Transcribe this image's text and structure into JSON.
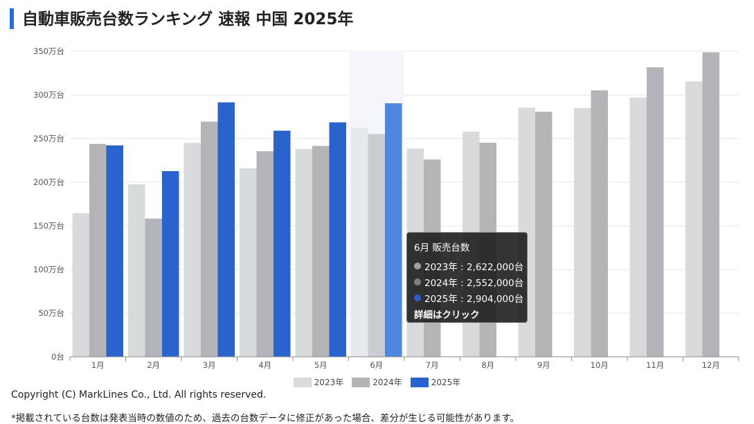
{
  "page": {
    "title": "自動車販売台数ランキング 速報 中国 2025年",
    "copyright": "Copyright (C) MarkLines Co., Ltd. All rights reserved.",
    "note": "*掲載されている台数は発表当時の数値のため、過去の台数データに修正があった場合、差分が生じる可能性があります。"
  },
  "tooltip": {
    "title": "6月 販売台数",
    "rows": [
      {
        "text": "2023年 : 2,622,000台",
        "color": "#a0a0a0"
      },
      {
        "text": "2024年 : 2,552,000台",
        "color": "#808080"
      },
      {
        "text": "2025年 : 2,904,000台",
        "color": "#2b5fc7"
      }
    ],
    "link": "詳細はクリック"
  },
  "chart_data": {
    "type": "bar",
    "categories": [
      "1月",
      "2月",
      "3月",
      "4月",
      "5月",
      "6月",
      "7月",
      "8月",
      "9月",
      "10月",
      "11月",
      "12月"
    ],
    "y_tick_labels": [
      "0台",
      "50万台",
      "100万台",
      "150万台",
      "200万台",
      "250万台",
      "300万台",
      "350万台"
    ],
    "ylim": [
      0,
      3500000
    ],
    "grid": true,
    "highlighted_category": "6月",
    "legend_position": "bottom",
    "series": [
      {
        "name": "2023年",
        "color": "#d9dadc",
        "highlight_color": "#e6e8ec",
        "values": [
          1645000,
          1976000,
          2450000,
          2158000,
          2380000,
          2622000,
          2386000,
          2580000,
          2855000,
          2852000,
          2970000,
          3155000
        ]
      },
      {
        "name": "2024年",
        "color": "#b2b4b8",
        "highlight_color": "#c9ccd1",
        "values": [
          2439000,
          1583000,
          2694000,
          2355000,
          2416000,
          2552000,
          2260000,
          2452000,
          2807000,
          3052000,
          3316000,
          3488000
        ]
      },
      {
        "name": "2025年",
        "color": "#2b63cc",
        "highlight_color": "#4f86e0",
        "values": [
          2422000,
          2127000,
          2915000,
          2590000,
          2686000,
          2904000,
          null,
          null,
          null,
          null,
          null,
          null
        ]
      }
    ]
  }
}
